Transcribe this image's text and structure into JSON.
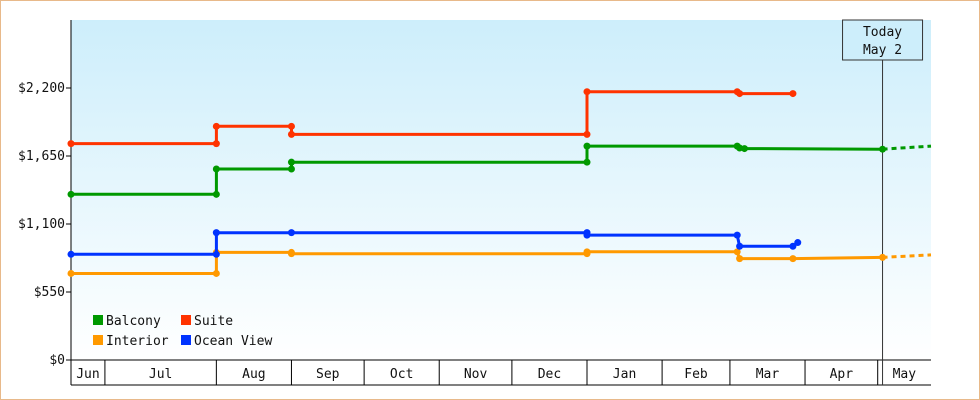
{
  "chart_data": {
    "type": "line",
    "step": true,
    "ylim": [
      0,
      2750
    ],
    "y_ticks": [
      {
        "value": 0,
        "label": "$0"
      },
      {
        "value": 550,
        "label": "$550"
      },
      {
        "value": 1100,
        "label": "$1,100"
      },
      {
        "value": 1650,
        "label": "$1,650"
      },
      {
        "value": 2200,
        "label": "$2,200"
      }
    ],
    "x_range": [
      "2024-06-01",
      "2025-05-22"
    ],
    "months": [
      {
        "label": "Jun",
        "start": "2024-06-01"
      },
      {
        "label": "Jul",
        "start": "2024-06-15"
      },
      {
        "label": "Aug",
        "start": "2024-07-31"
      },
      {
        "label": "Sep",
        "start": "2024-08-31"
      },
      {
        "label": "Oct",
        "start": "2024-09-30"
      },
      {
        "label": "Nov",
        "start": "2024-10-31"
      },
      {
        "label": "Dec",
        "start": "2024-11-30"
      },
      {
        "label": "Jan",
        "start": "2024-12-31"
      },
      {
        "label": "Feb",
        "start": "2025-01-31"
      },
      {
        "label": "Mar",
        "start": "2025-02-28"
      },
      {
        "label": "Apr",
        "start": "2025-03-31"
      },
      {
        "label": "May",
        "start": "2025-04-30",
        "end": "2025-05-22"
      }
    ],
    "today": {
      "date": "2025-05-02",
      "line1": "Today",
      "line2": "May 2"
    },
    "legend": {
      "placement": "bottom-left",
      "columns": 2
    },
    "series": [
      {
        "name": "Balcony",
        "color": "#009900",
        "points": [
          [
            "2024-06-01",
            1340
          ],
          [
            "2024-07-31",
            1340
          ],
          [
            "2024-07-31",
            1545
          ],
          [
            "2024-08-31",
            1545
          ],
          [
            "2024-08-31",
            1600
          ],
          [
            "2024-12-31",
            1600
          ],
          [
            "2024-12-31",
            1730
          ],
          [
            "2025-03-03",
            1730
          ],
          [
            "2025-03-04",
            1715
          ],
          [
            "2025-03-06",
            1710
          ],
          [
            "2025-05-02",
            1705
          ]
        ],
        "projection": {
          "date": "2025-05-22",
          "value": 1730
        }
      },
      {
        "name": "Suite",
        "color": "#ff3300",
        "points": [
          [
            "2024-06-01",
            1750
          ],
          [
            "2024-07-31",
            1750
          ],
          [
            "2024-07-31",
            1890
          ],
          [
            "2024-08-31",
            1890
          ],
          [
            "2024-08-31",
            1825
          ],
          [
            "2024-12-31",
            1825
          ],
          [
            "2024-12-31",
            2170
          ],
          [
            "2025-03-03",
            2170
          ],
          [
            "2025-03-04",
            2155
          ],
          [
            "2025-03-26",
            2155
          ]
        ]
      },
      {
        "name": "Interior",
        "color": "#ff9900",
        "points": [
          [
            "2024-06-01",
            700
          ],
          [
            "2024-07-31",
            700
          ],
          [
            "2024-07-31",
            870
          ],
          [
            "2024-08-31",
            870
          ],
          [
            "2024-08-31",
            860
          ],
          [
            "2024-12-31",
            860
          ],
          [
            "2024-12-31",
            875
          ],
          [
            "2025-03-03",
            875
          ],
          [
            "2025-03-04",
            820
          ],
          [
            "2025-03-26",
            820
          ],
          [
            "2025-05-02",
            830
          ]
        ],
        "projection": {
          "date": "2025-05-22",
          "value": 850
        }
      },
      {
        "name": "Ocean View",
        "color": "#0033ff",
        "points": [
          [
            "2024-06-01",
            855
          ],
          [
            "2024-07-31",
            855
          ],
          [
            "2024-07-31",
            1030
          ],
          [
            "2024-08-31",
            1030
          ],
          [
            "2024-12-31",
            1030
          ],
          [
            "2024-12-31",
            1010
          ],
          [
            "2025-03-03",
            1010
          ],
          [
            "2025-03-04",
            920
          ],
          [
            "2025-03-26",
            920
          ],
          [
            "2025-03-28",
            950
          ]
        ]
      }
    ]
  }
}
